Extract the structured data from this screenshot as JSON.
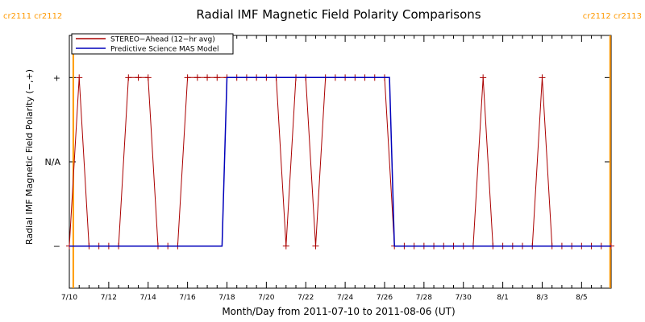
{
  "chart_data": {
    "type": "line",
    "title": "Radial IMF Magnetic Field Polarity Comparisons",
    "xlabel": "Month/Day from 2011-07-10 to 2011-08-06 (UT)",
    "ylabel": "Radial IMF Magnetic Field Polarity (−,+)",
    "x_range_days": [
      0,
      27.5
    ],
    "ylim": [
      -1.5,
      1.5
    ],
    "x_ticks": [
      {
        "day": 0,
        "label": "7/10"
      },
      {
        "day": 2,
        "label": "7/12"
      },
      {
        "day": 4,
        "label": "7/14"
      },
      {
        "day": 6,
        "label": "7/16"
      },
      {
        "day": 8,
        "label": "7/18"
      },
      {
        "day": 10,
        "label": "7/20"
      },
      {
        "day": 12,
        "label": "7/22"
      },
      {
        "day": 14,
        "label": "7/24"
      },
      {
        "day": 16,
        "label": "7/26"
      },
      {
        "day": 18,
        "label": "7/28"
      },
      {
        "day": 20,
        "label": "7/30"
      },
      {
        "day": 22,
        "label": "8/1"
      },
      {
        "day": 24,
        "label": "8/3"
      },
      {
        "day": 26,
        "label": "8/5"
      }
    ],
    "y_ticks": [
      {
        "value": 1,
        "label": "+"
      },
      {
        "value": 0,
        "label": "N/A"
      },
      {
        "value": -1,
        "label": "−"
      }
    ],
    "rotation_markers": [
      {
        "day": 0.2,
        "labels": "cr2111 cr2112",
        "side": "left",
        "color": "#ff9900"
      },
      {
        "day": 27.45,
        "labels": "cr2112 cr2113",
        "side": "right",
        "color": "#ff9900"
      }
    ],
    "legend": {
      "position": "top-left",
      "entries": [
        {
          "name": "STEREO−Ahead (12−hr avg)",
          "color": "#aa0000"
        },
        {
          "name": "Predictive Science MAS Model",
          "color": "#0000bb"
        }
      ]
    },
    "series": [
      {
        "name": "STEREO−Ahead (12−hr avg)",
        "color": "#aa0000",
        "marker": "plus",
        "x": [
          0,
          0.5,
          1,
          1.5,
          2,
          2.5,
          3,
          3.5,
          4,
          4.5,
          5,
          5.5,
          6,
          6.5,
          7,
          7.5,
          8,
          8.5,
          9,
          9.5,
          10,
          10.5,
          11,
          11.5,
          12,
          12.5,
          13,
          13.5,
          14,
          14.5,
          15,
          15.5,
          16,
          16.5,
          17,
          17.5,
          18,
          18.5,
          19,
          19.5,
          20,
          20.5,
          21,
          21.5,
          22,
          22.5,
          23,
          23.5,
          24,
          24.5,
          25,
          25.5,
          26,
          26.5,
          27,
          27.5
        ],
        "values": [
          -1,
          1,
          -1,
          -1,
          -1,
          -1,
          1,
          1,
          1,
          -1,
          -1,
          -1,
          1,
          1,
          1,
          1,
          1,
          1,
          1,
          1,
          1,
          1,
          -1,
          1,
          1,
          -1,
          1,
          1,
          1,
          1,
          1,
          1,
          1,
          -1,
          -1,
          -1,
          -1,
          -1,
          -1,
          -1,
          -1,
          -1,
          1,
          -1,
          -1,
          -1,
          -1,
          -1,
          1,
          -1,
          -1,
          -1,
          -1,
          -1,
          -1,
          -1
        ]
      },
      {
        "name": "Predictive Science MAS Model",
        "color": "#0000bb",
        "marker": "none",
        "x": [
          0,
          7.75,
          8,
          16.25,
          16.5,
          27.5
        ],
        "values": [
          -1,
          -1,
          1,
          1,
          -1,
          -1
        ]
      }
    ]
  }
}
